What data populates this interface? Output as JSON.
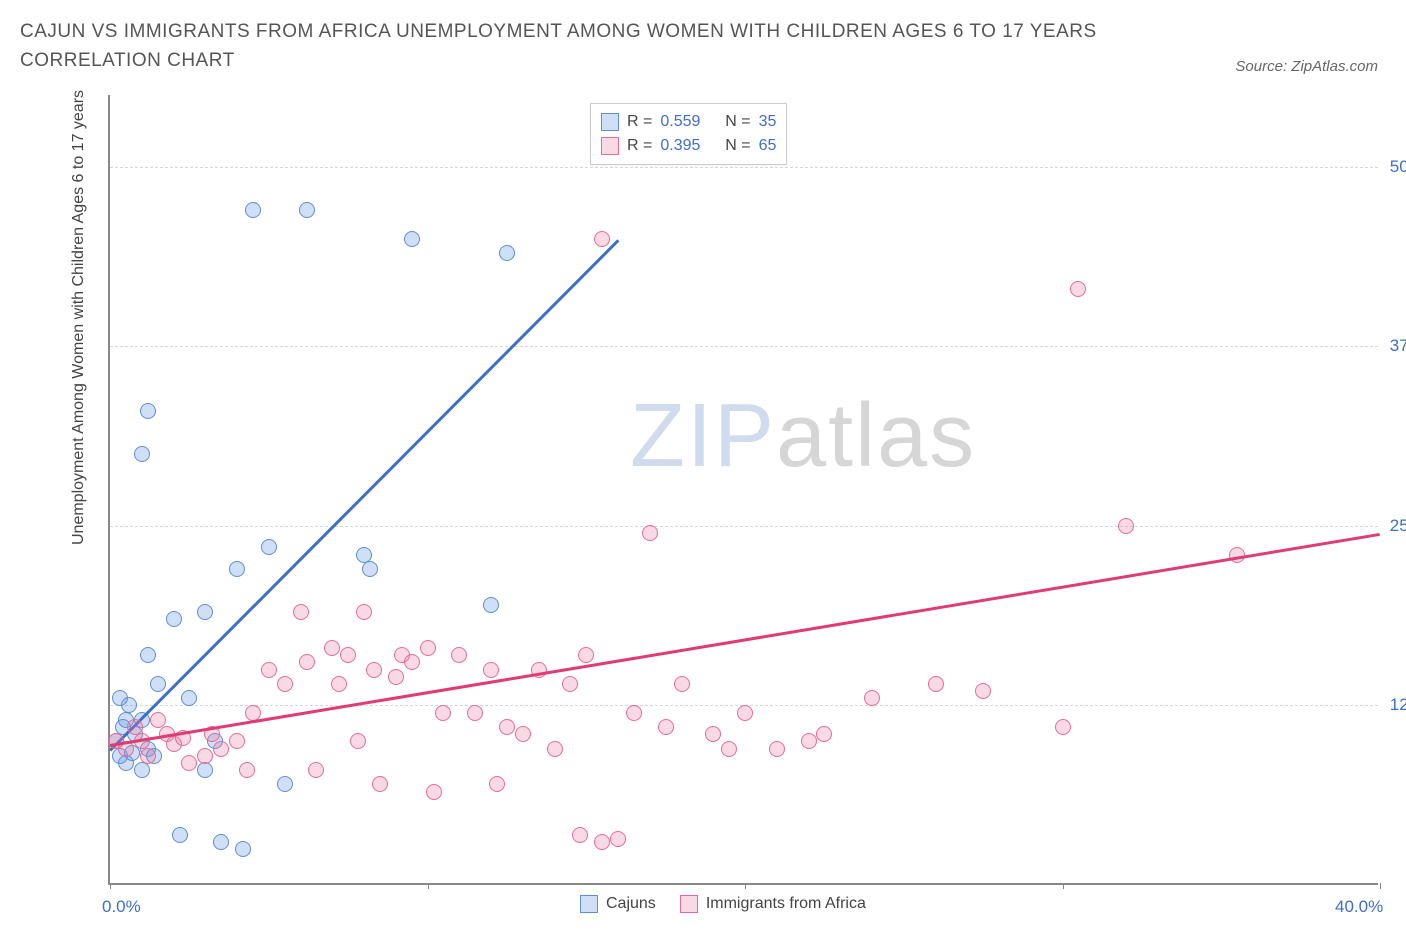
{
  "title": "CAJUN VS IMMIGRANTS FROM AFRICA UNEMPLOYMENT AMONG WOMEN WITH CHILDREN AGES 6 TO 17 YEARS CORRELATION CHART",
  "source_prefix": "Source: ",
  "source_name": "ZipAtlas.com",
  "watermark_a": "ZIP",
  "watermark_b": "atlas",
  "y_axis_label": "Unemployment Among Women with Children Ages 6 to 17 years",
  "chart": {
    "type": "scatter",
    "background_color": "#ffffff",
    "grid_color": "#d8d8d8",
    "axis_color": "#888888",
    "xlim": [
      0,
      40
    ],
    "ylim": [
      0,
      55
    ],
    "x_ticks": [
      0,
      10,
      20,
      30,
      40
    ],
    "x_tick_labels": [
      "0.0%",
      "",
      "",
      "",
      "40.0%"
    ],
    "y_ticks": [
      12.5,
      25,
      37.5,
      50
    ],
    "y_tick_labels": [
      "12.5%",
      "25.0%",
      "37.5%",
      "50.0%"
    ],
    "marker_radius": 8,
    "marker_border_width": 1,
    "series": [
      {
        "name": "Cajuns",
        "fill": "rgba(106,156,228,0.32)",
        "stroke": "#5e8fd6",
        "line_color": "#3d6fc9",
        "R": "0.559",
        "N": "35",
        "trend": {
          "x1": 0,
          "y1": 9.5,
          "x2": 16,
          "y2": 45
        },
        "points": [
          [
            0.2,
            10
          ],
          [
            0.4,
            11
          ],
          [
            0.6,
            12.5
          ],
          [
            0.3,
            9
          ],
          [
            0.8,
            10.5
          ],
          [
            1,
            8
          ],
          [
            1.2,
            9.5
          ],
          [
            0.3,
            13
          ],
          [
            1.5,
            14
          ],
          [
            0.5,
            11.5
          ],
          [
            1.2,
            33
          ],
          [
            1.0,
            30
          ],
          [
            4.5,
            47
          ],
          [
            6.2,
            47
          ],
          [
            1.2,
            16
          ],
          [
            2,
            18.5
          ],
          [
            2.5,
            13
          ],
          [
            3,
            8
          ],
          [
            3,
            19
          ],
          [
            3.3,
            10
          ],
          [
            4,
            22
          ],
          [
            5,
            23.5
          ],
          [
            5.5,
            7
          ],
          [
            8,
            23
          ],
          [
            8.2,
            22
          ],
          [
            9.5,
            45
          ],
          [
            12,
            19.5
          ],
          [
            12.5,
            44
          ],
          [
            2.2,
            3.5
          ],
          [
            3.5,
            3
          ],
          [
            4.2,
            2.5
          ],
          [
            1,
            11.5
          ],
          [
            1.4,
            9
          ],
          [
            0.5,
            8.5
          ],
          [
            0.7,
            9.2
          ]
        ]
      },
      {
        "name": "Immigrants from Africa",
        "fill": "rgba(235,120,155,0.28)",
        "stroke": "#e76c95",
        "line_color": "#e23b72",
        "R": "0.395",
        "N": "65",
        "trend": {
          "x1": 0,
          "y1": 9.8,
          "x2": 40,
          "y2": 24.5
        },
        "points": [
          [
            0.2,
            10
          ],
          [
            0.5,
            9.5
          ],
          [
            0.8,
            11
          ],
          [
            1,
            10
          ],
          [
            1.2,
            9
          ],
          [
            1.5,
            11.5
          ],
          [
            1.8,
            10.5
          ],
          [
            2,
            9.8
          ],
          [
            2.3,
            10.2
          ],
          [
            2.5,
            8.5
          ],
          [
            3,
            9
          ],
          [
            3.2,
            10.5
          ],
          [
            3.5,
            9.5
          ],
          [
            4,
            10
          ],
          [
            4.3,
            8
          ],
          [
            4.5,
            12
          ],
          [
            5,
            15
          ],
          [
            5.5,
            14
          ],
          [
            6,
            19
          ],
          [
            6.2,
            15.5
          ],
          [
            6.5,
            8
          ],
          [
            7,
            16.5
          ],
          [
            7.2,
            14
          ],
          [
            7.5,
            16
          ],
          [
            7.8,
            10
          ],
          [
            8,
            19
          ],
          [
            8.3,
            15
          ],
          [
            8.5,
            7
          ],
          [
            9,
            14.5
          ],
          [
            9.2,
            16
          ],
          [
            9.5,
            15.5
          ],
          [
            10,
            16.5
          ],
          [
            10.5,
            12
          ],
          [
            11,
            16
          ],
          [
            11.5,
            12
          ],
          [
            12,
            15
          ],
          [
            12.2,
            7
          ],
          [
            12.5,
            11
          ],
          [
            13,
            10.5
          ],
          [
            13.5,
            15
          ],
          [
            14,
            9.5
          ],
          [
            14.5,
            14
          ],
          [
            14.8,
            3.5
          ],
          [
            15,
            16
          ],
          [
            15.5,
            3
          ],
          [
            16,
            3.2
          ],
          [
            16.5,
            12
          ],
          [
            17,
            24.5
          ],
          [
            17.5,
            11
          ],
          [
            18,
            14
          ],
          [
            19,
            10.5
          ],
          [
            19.5,
            9.5
          ],
          [
            20,
            12
          ],
          [
            21,
            9.5
          ],
          [
            22,
            10
          ],
          [
            22.5,
            10.5
          ],
          [
            24,
            13
          ],
          [
            26,
            14
          ],
          [
            27.5,
            13.5
          ],
          [
            30,
            11
          ],
          [
            30.5,
            41.5
          ],
          [
            32,
            25
          ],
          [
            15.5,
            45
          ],
          [
            35.5,
            23
          ],
          [
            10.2,
            6.5
          ]
        ]
      }
    ]
  },
  "statbox_labels": {
    "R": "R =",
    "N": "N ="
  },
  "legend": {
    "items": [
      {
        "label": "Cajuns",
        "fill": "rgba(106,156,228,0.32)",
        "stroke": "#5e8fd6"
      },
      {
        "label": "Immigrants from Africa",
        "fill": "rgba(235,120,155,0.28)",
        "stroke": "#e76c95"
      }
    ]
  }
}
